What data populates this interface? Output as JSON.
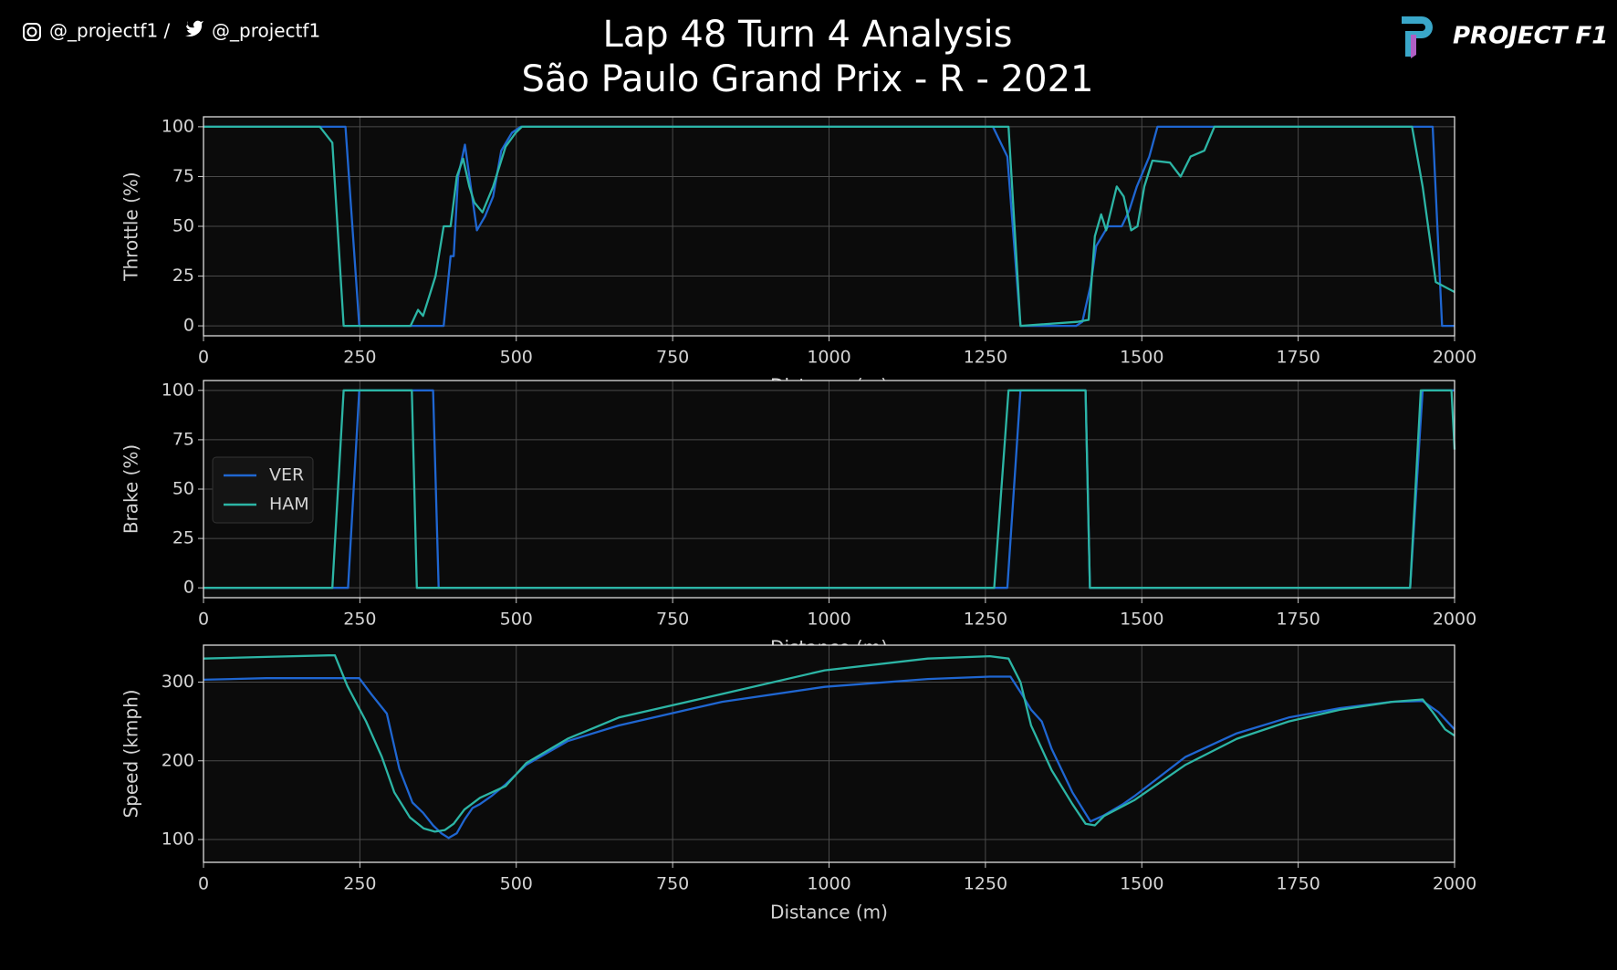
{
  "header": {
    "handle1": "@_projectf1 /",
    "handle2": "@_projectf1",
    "logo": "PROJECT F1"
  },
  "title": "Lap 48 Turn 4 Analysis",
  "subtitle": "São Paulo Grand Prix - R - 2021",
  "chart_data": [
    {
      "type": "line",
      "ylabel": "Throttle (%)",
      "xlabel": "Distance (m)",
      "xlim": [
        0,
        2000
      ],
      "xticks": [
        0,
        250,
        500,
        750,
        1000,
        1250,
        1500,
        1750,
        2000
      ],
      "ylim": [
        -5,
        105
      ],
      "yticks": [
        0,
        25,
        50,
        75,
        100
      ],
      "grid": true,
      "series": [
        {
          "name": "VER",
          "color": "#1f66d1",
          "x": [
            0,
            227,
            249,
            384,
            395,
            400,
            407,
            418,
            437,
            450,
            463,
            476,
            493,
            507,
            1262,
            1285,
            1306,
            1395,
            1405,
            1418,
            1427,
            1446,
            1468,
            1480,
            1492,
            1512,
            1525,
            1965,
            1980,
            2000
          ],
          "values": [
            100,
            100,
            0,
            0,
            35,
            35,
            75,
            91,
            48,
            55,
            65,
            88,
            97,
            100,
            100,
            85,
            0,
            0,
            2,
            20,
            40,
            50,
            50,
            58,
            70,
            85,
            100,
            100,
            0,
            0
          ]
        },
        {
          "name": "HAM",
          "color": "#2cb5a5",
          "x": [
            0,
            186,
            206,
            224,
            331,
            343,
            351,
            361,
            371,
            384,
            395,
            405,
            415,
            425,
            433,
            446,
            463,
            483,
            499,
            509,
            1287,
            1306,
            1397,
            1415,
            1425,
            1435,
            1443,
            1460,
            1471,
            1483,
            1493,
            1504,
            1517,
            1545,
            1562,
            1578,
            1600,
            1616,
            1932,
            1949,
            1970,
            2000
          ],
          "values": [
            100,
            100,
            92,
            0,
            0,
            8,
            5,
            15,
            25,
            50,
            50,
            75,
            84,
            70,
            62,
            57,
            70,
            90,
            97,
            100,
            100,
            0,
            2,
            3,
            45,
            56,
            48,
            70,
            65,
            48,
            50,
            70,
            83,
            82,
            75,
            85,
            88,
            100,
            100,
            70,
            22,
            17
          ]
        }
      ]
    },
    {
      "type": "line",
      "ylabel": "Brake (%)",
      "xlabel": "Distance (m)",
      "legend": "center left",
      "xlim": [
        0,
        2000
      ],
      "xticks": [
        0,
        250,
        500,
        750,
        1000,
        1250,
        1500,
        1750,
        2000
      ],
      "ylim": [
        -5,
        105
      ],
      "yticks": [
        0,
        25,
        50,
        75,
        100
      ],
      "grid": true,
      "series": [
        {
          "name": "VER",
          "color": "#1f66d1",
          "x": [
            0,
            231,
            249,
            367,
            376,
            1285,
            1306,
            1410,
            1417,
            1929,
            1949,
            2000
          ],
          "values": [
            0,
            0,
            100,
            100,
            0,
            0,
            100,
            100,
            0,
            0,
            100,
            100
          ]
        },
        {
          "name": "HAM",
          "color": "#2cb5a5",
          "x": [
            0,
            206,
            224,
            333,
            341,
            1264,
            1287,
            1410,
            1417,
            1929,
            1946,
            1995,
            2000
          ],
          "values": [
            0,
            0,
            100,
            100,
            0,
            0,
            100,
            100,
            0,
            0,
            100,
            100,
            70
          ]
        }
      ]
    },
    {
      "type": "line",
      "ylabel": "Speed (kmph)",
      "xlabel": "Distance (m)",
      "xlim": [
        0,
        2000
      ],
      "xticks": [
        0,
        250,
        500,
        750,
        1000,
        1250,
        1500,
        1750,
        2000
      ],
      "ylim": [
        71,
        347
      ],
      "yticks": [
        100,
        200,
        300
      ],
      "grid": true,
      "series": [
        {
          "name": "VER",
          "color": "#1f66d1",
          "x": [
            0,
            100,
            200,
            249,
            268,
            293,
            313,
            334,
            351,
            367,
            380,
            392,
            405,
            417,
            430,
            442,
            460,
            483,
            516,
            582,
            664,
            829,
            993,
            1158,
            1257,
            1290,
            1308,
            1323,
            1340,
            1356,
            1389,
            1418,
            1438,
            1470,
            1488,
            1570,
            1652,
            1735,
            1817,
            1900,
            1949,
            1974,
            2000
          ],
          "values": [
            303,
            305,
            305,
            305,
            285,
            260,
            190,
            147,
            134,
            118,
            108,
            102,
            108,
            125,
            140,
            145,
            155,
            170,
            195,
            225,
            245,
            275,
            294,
            304,
            307,
            307,
            285,
            265,
            250,
            215,
            160,
            123,
            130,
            145,
            155,
            205,
            235,
            255,
            267,
            275,
            276,
            262,
            240
          ]
        },
        {
          "name": "HAM",
          "color": "#2cb5a5",
          "x": [
            0,
            100,
            200,
            210,
            230,
            260,
            285,
            305,
            330,
            352,
            370,
            386,
            400,
            417,
            442,
            483,
            516,
            582,
            664,
            829,
            993,
            1158,
            1257,
            1287,
            1306,
            1323,
            1356,
            1389,
            1410,
            1425,
            1440,
            1488,
            1570,
            1652,
            1735,
            1817,
            1900,
            1949,
            1965,
            1985,
            2000
          ],
          "values": [
            330,
            332,
            334,
            334,
            295,
            250,
            205,
            160,
            128,
            114,
            110,
            112,
            120,
            138,
            153,
            168,
            197,
            228,
            255,
            285,
            315,
            330,
            333,
            330,
            300,
            245,
            188,
            145,
            120,
            118,
            130,
            150,
            195,
            228,
            250,
            265,
            275,
            278,
            262,
            240,
            232
          ]
        }
      ]
    }
  ]
}
